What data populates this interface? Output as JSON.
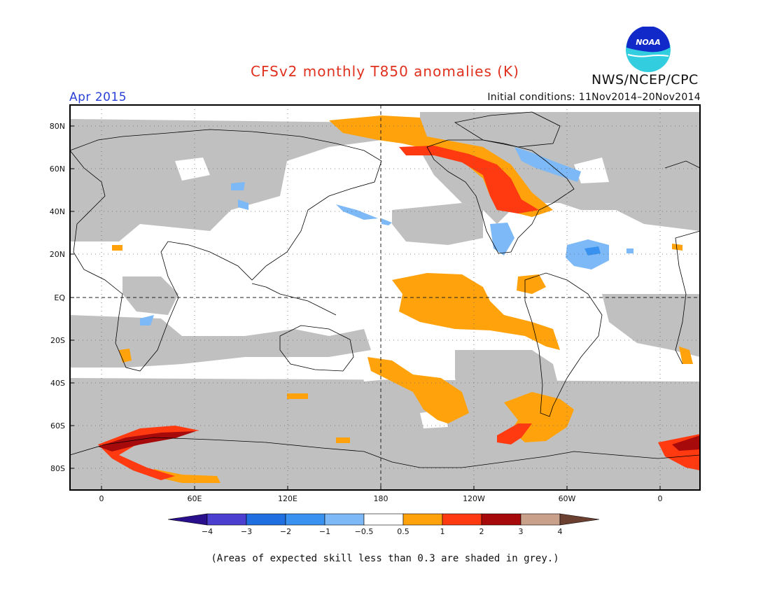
{
  "header": {
    "title": "CFSv2 monthly T850 anomalies (K)",
    "period": "Apr 2015",
    "initial_conditions": "Initial conditions: 11Nov2014–20Nov2014",
    "agency": "NWS/NCEP/CPC",
    "logo_text": "NOAA"
  },
  "axes": {
    "lat_labels": [
      "80N",
      "60N",
      "40N",
      "20N",
      "EQ",
      "20S",
      "40S",
      "60S",
      "80S"
    ],
    "lon_labels": [
      "0",
      "60E",
      "120E",
      "180",
      "120W",
      "60W",
      "0"
    ]
  },
  "colorbar": {
    "labels": [
      "−4",
      "−3",
      "−2",
      "−1",
      "−0.5",
      "0.5",
      "1",
      "2",
      "3",
      "4"
    ],
    "colors": [
      "#2a0f8c",
      "#4a3fcf",
      "#1f6fe0",
      "#3a92f0",
      "#7db9f6",
      "#ffffff",
      "#ffa20c",
      "#ff3a10",
      "#a60a0a",
      "#c9a08a",
      "#6b4030"
    ]
  },
  "caption": "(Areas of expected skill less than 0.3 are shaded in grey.)"
}
